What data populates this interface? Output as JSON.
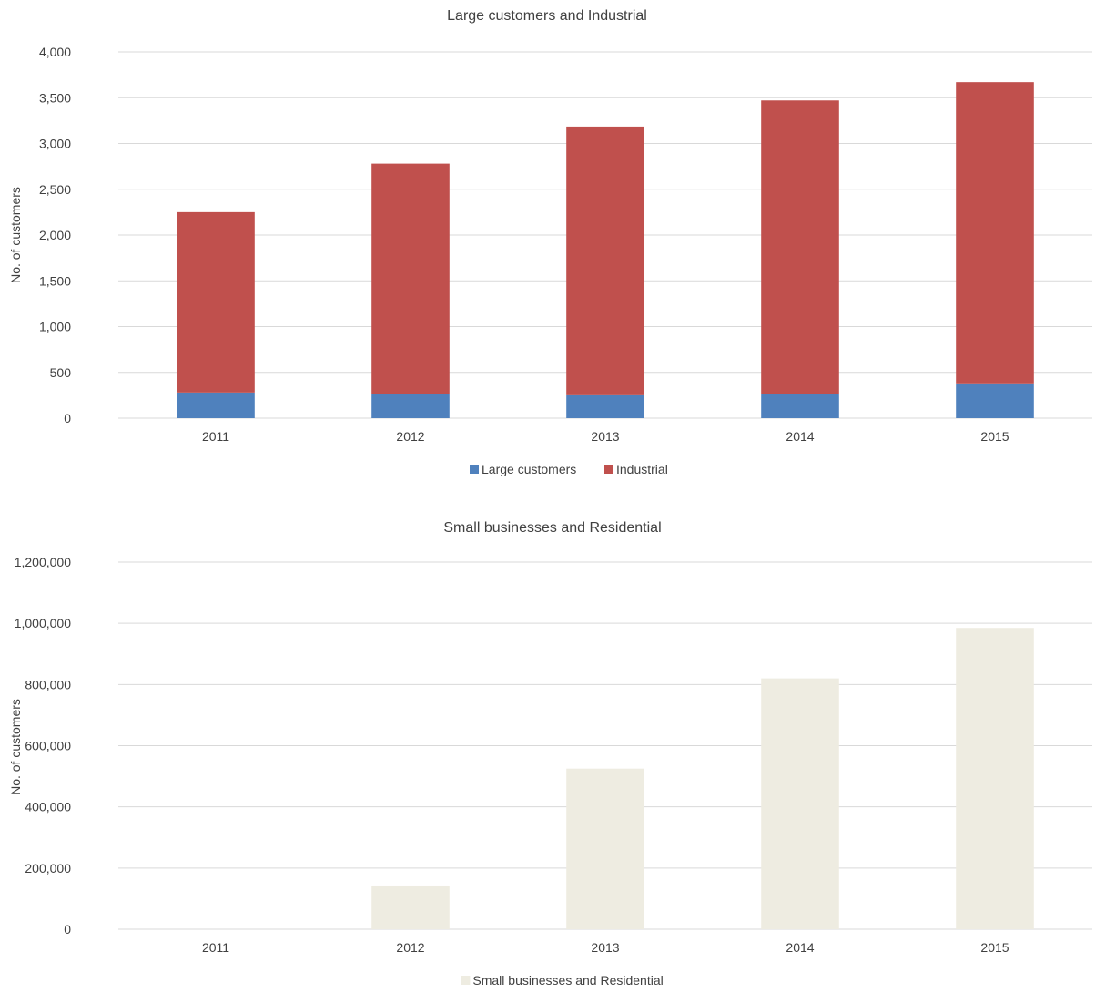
{
  "chart_data": [
    {
      "type": "bar",
      "stacked": true,
      "title": "Large customers and Industrial",
      "xlabel": "",
      "ylabel": "No. of customers",
      "categories": [
        "2011",
        "2012",
        "2013",
        "2014",
        "2015"
      ],
      "series": [
        {
          "name": "Large customers",
          "color": "#4f81bd",
          "values": [
            280,
            260,
            250,
            265,
            380
          ]
        },
        {
          "name": "Industrial",
          "color": "#c0504d",
          "values": [
            1970,
            2520,
            2935,
            3205,
            3290
          ]
        }
      ],
      "ylim": [
        0,
        4000
      ],
      "yticks": [
        0,
        500,
        1000,
        1500,
        2000,
        2500,
        3000,
        3500,
        4000
      ],
      "ytick_labels": [
        "0",
        "500",
        "1,000",
        "1,500",
        "2,000",
        "2,500",
        "3,000",
        "3,500",
        "4,000"
      ],
      "grid": true,
      "legend": "bottom"
    },
    {
      "type": "bar",
      "title": "Small businesses and Residential",
      "xlabel": "",
      "ylabel": "No. of customers",
      "categories": [
        "2011",
        "2012",
        "2013",
        "2014",
        "2015"
      ],
      "series": [
        {
          "name": "Small businesses and Residential",
          "color": "#eeece1",
          "values": [
            0,
            143000,
            525000,
            820000,
            985000
          ]
        }
      ],
      "ylim": [
        0,
        1200000
      ],
      "yticks": [
        0,
        200000,
        400000,
        600000,
        800000,
        1000000,
        1200000
      ],
      "ytick_labels": [
        "0",
        "200,000",
        "400,000",
        "600,000",
        "800,000",
        "1,000,000",
        "1,200,000"
      ],
      "grid": true,
      "legend": "bottom"
    }
  ]
}
